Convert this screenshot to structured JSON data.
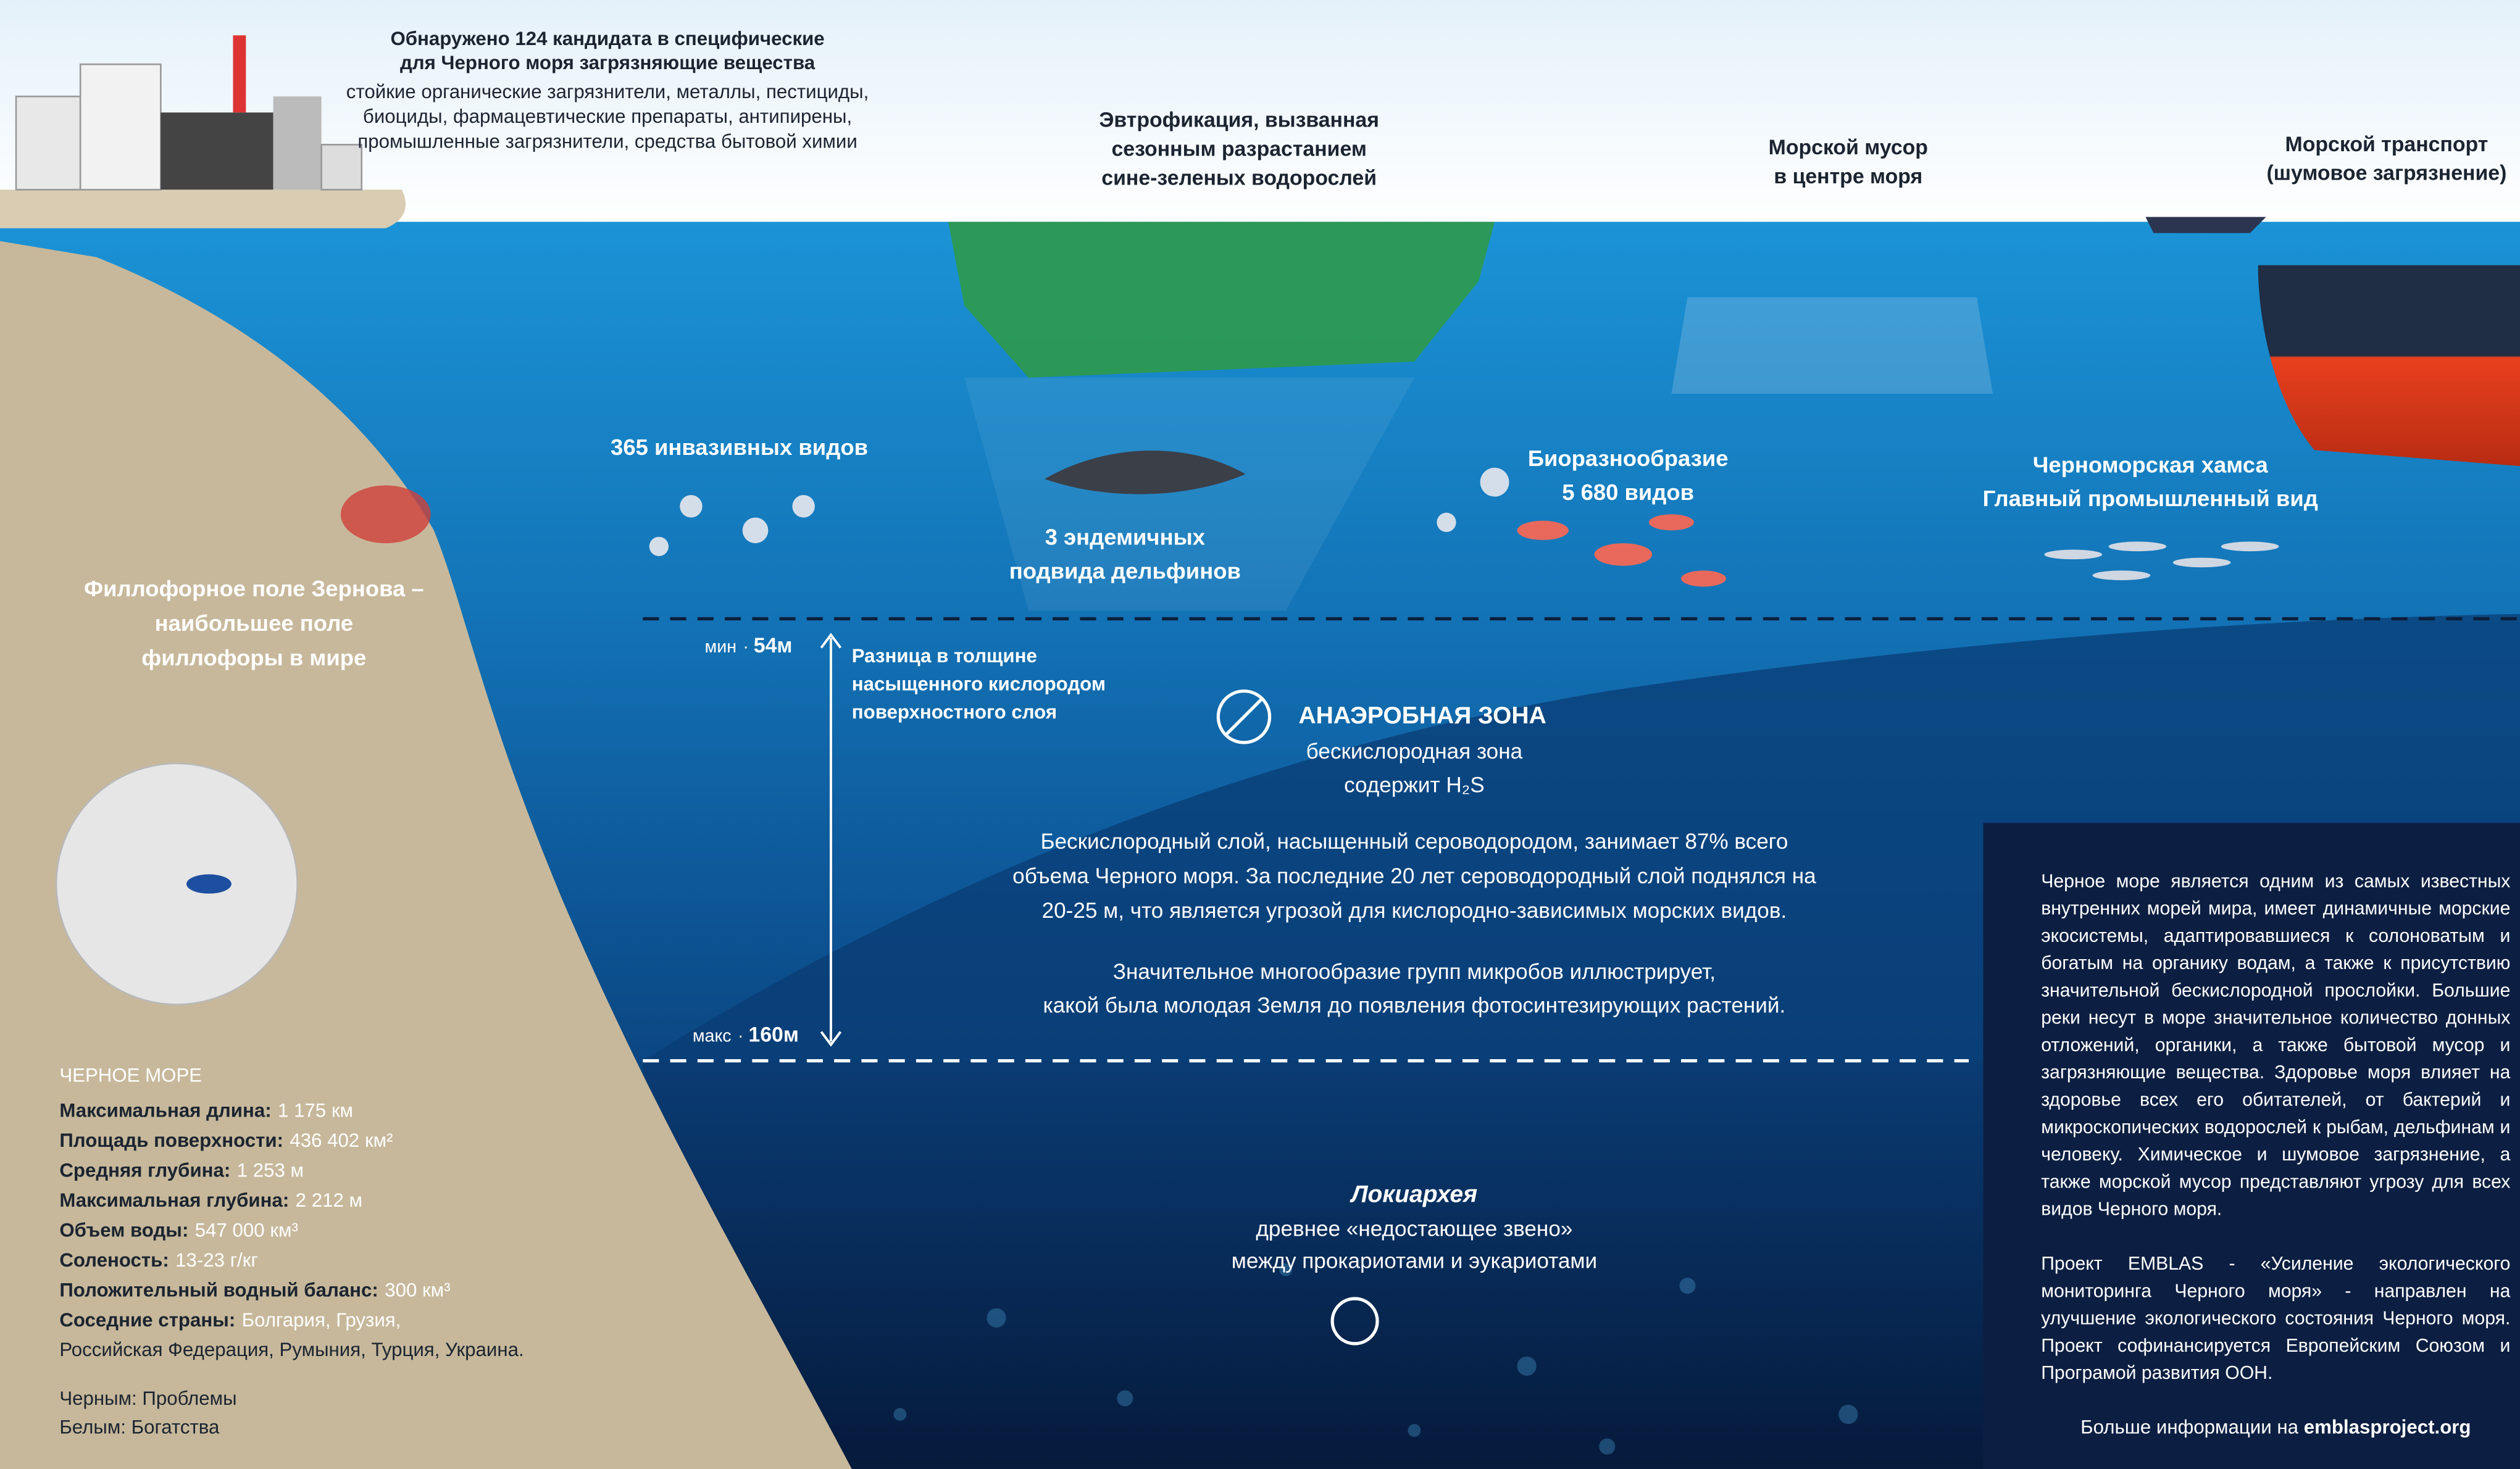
{
  "pollutants": {
    "title": [
      "Обнаружено 124 кандидата в специфические",
      "для Черного моря загрязняющие вещества"
    ],
    "text": [
      "стойкие органические загрязнители, металлы, пестициды,",
      "биоциды, фармацевтические препараты, антипирены,",
      "промышленные загрязнители, средства бытовой химии"
    ]
  },
  "eutrophication": [
    "Эвтрофикация, вызванная",
    "сезонным разрастанием",
    "сине-зеленых водорослей"
  ],
  "litter": [
    "Морской мусор",
    "в центре моря"
  ],
  "transport": [
    "Морской транспорт",
    "(шумовое загрязнение)"
  ],
  "invasive": [
    "365 инвазивных видов"
  ],
  "dolphins": [
    "3 эндемичных",
    "подвида дельфинов"
  ],
  "biodiversity": [
    "Биоразнообразие",
    "5 680 видов"
  ],
  "anchovy": [
    "Черноморская хамса",
    "Главный промышленный вид"
  ],
  "phyllophora": [
    "Филлофорное поле Зернова –",
    "наибольшее поле",
    "филлофоры в мире"
  ],
  "depth": {
    "min": {
      "label": "мин",
      "value": "54м"
    },
    "max": {
      "label": "макс",
      "value": "160м"
    }
  },
  "oxygen_difference": [
    "Разница в толщине",
    "насыщенного кислородом",
    "поверхностного слоя"
  ],
  "anaerobic": {
    "title": "АНАЭРОБНАЯ ЗОНА",
    "subtitle": [
      "бескислородная зона",
      "содержит H₂S"
    ],
    "paragraph1": [
      "Бескислородный слой, насыщенный сероводородом, занимает 87% всего",
      "объема Черного моря. За последние 20 лет сероводородный слой поднялся на",
      "20-25 м, что является угрозой для кислородно-зависимых морских видов."
    ],
    "paragraph2": [
      "Значительное многообразие групп микробов иллюстрирует,",
      "какой была молодая Земля до появления фотосинтезирующих растений."
    ]
  },
  "lokiarchaea": {
    "title": "Локиархея",
    "text": [
      "древнее «недостающее звено»",
      "между прокариотами и эукариотами"
    ]
  },
  "facts": {
    "label": "ЧЕРНОЕ МОРЕ",
    "items": [
      {
        "name": "Максимальная длина:",
        "value": "1 175 км"
      },
      {
        "name": "Площадь поверхности:",
        "value": "436 402 км²"
      },
      {
        "name": "Средняя глубина:",
        "value": "1 253 м"
      },
      {
        "name": "Максимальная глубина:",
        "value": "2 212 м"
      },
      {
        "name": "Объем воды:",
        "value": "547 000 км³"
      },
      {
        "name": "Соленость:",
        "value": "13-23 г/кг"
      },
      {
        "name": "Положительный водный баланс:",
        "value": "300 км³"
      },
      {
        "name": "Соседние страны:",
        "value": "Болгария, Грузия,"
      }
    ],
    "countries_continued": "Российская Федерация, Румыния, Турция, Украина."
  },
  "legend": [
    "Черным: Проблемы",
    "Белым: Богатства"
  ],
  "info_panel": {
    "paragraph1": "Черное море является одним из самых известных внутренних морей мира, имеет динамичные морские экосистемы, адаптировавшиеся к солоноватым и богатым на органику водам, а также к присутствию значительной бескислородной прослойки. Большие реки несут в море значительное количество донных отложений, органики, а также бытовой мусор и загрязняющие вещества. Здоровье моря влияет на здоровье всех его обитателей, от бактерий и микроскопических водорослей к рыбам, дельфинам и человеку. Химическое и шумовое загрязнение, а также морской мусор представляют угрозу для всех видов Черного моря.",
    "paragraph2": "Проект EMBLAS - «Усиление экологического мониторинга Черного моря» - направлен на улучшение экологического состояния Черного моря. Проект софинансируется Европейским Союзом и Програмой развития ООН.",
    "more_info": "Больше информации на",
    "website": "emblasproject.org"
  }
}
